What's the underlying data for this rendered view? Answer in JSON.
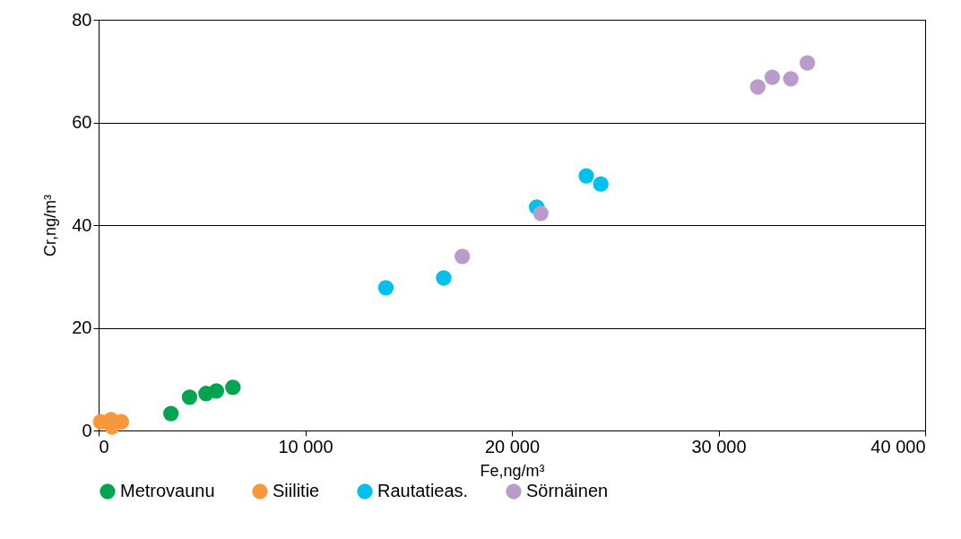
{
  "chart_data": {
    "type": "scatter",
    "xlabel": "Fe,ng/m³",
    "ylabel": "Cr,ng/m³",
    "xlim": [
      0,
      40000
    ],
    "xticks": [
      0,
      {
        "value": 10000,
        "label": "10 000"
      },
      {
        "value": 20000,
        "label": "20 000"
      },
      {
        "value": 30000,
        "label": "30 000"
      },
      {
        "value": 40000,
        "label": "40 000"
      }
    ],
    "ylim": [
      0,
      80
    ],
    "yticks": [
      0,
      20,
      40,
      60,
      80
    ],
    "grid": "y",
    "legend": "bottom",
    "marker": "circle",
    "series": [
      {
        "name": "Metrovaunu",
        "color": "#00a550",
        "x": [
          3500,
          4400,
          5200,
          5700,
          6500
        ],
        "values": [
          3.3,
          6.5,
          7.2,
          7.7,
          8.4
        ]
      },
      {
        "name": "Siilitie",
        "color": "#f7993a",
        "x": [
          100,
          1100,
          650,
          600
        ],
        "values": [
          1.7,
          1.7,
          0.7,
          2.1
        ]
      },
      {
        "name": "Rautatieas.",
        "color": "#00c0ed",
        "x": [
          13900,
          16700,
          21200,
          23600,
          24300
        ],
        "values": [
          27.8,
          29.7,
          43.5,
          49.6,
          48.0
        ]
      },
      {
        "name": "Sörnäinen",
        "color": "#b99ccb",
        "x": [
          17600,
          21400,
          31900,
          32600,
          33500,
          34300
        ],
        "values": [
          33.9,
          42.3,
          66.9,
          68.8,
          68.5,
          71.6
        ]
      }
    ]
  }
}
